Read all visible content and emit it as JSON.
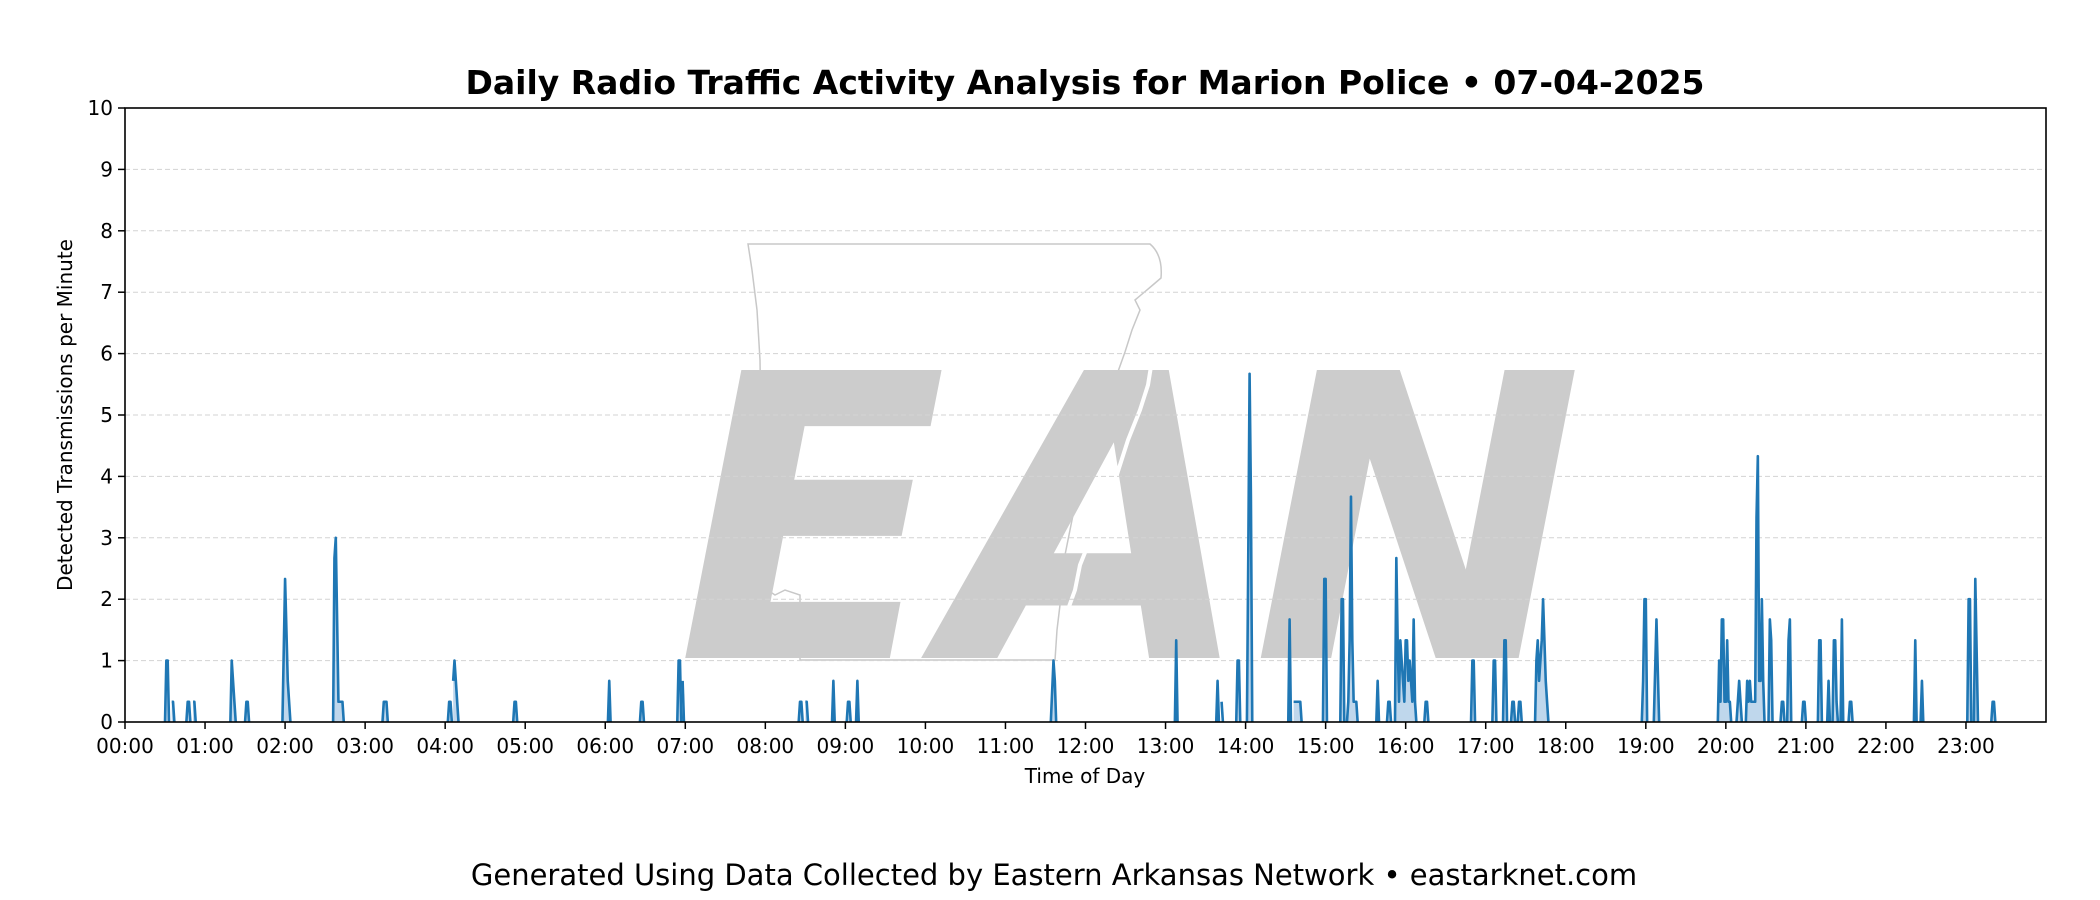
{
  "footer": "Generated Using Data Collected by Eastern Arkansas Network • eastarknet.com",
  "watermark": {
    "text": "EAN",
    "color": "#cccccc",
    "map_color": "#c8c8c8"
  },
  "colors": {
    "line": "#1f77b4",
    "fill": "#a9c9e6",
    "grid": "#d3d3d3",
    "axis": "#000000"
  },
  "chart_data": {
    "type": "area",
    "title": "Daily Radio Traffic Activity Analysis for Marion Police • 07-04-2025",
    "xlabel": "Time of Day",
    "ylabel": "Detected Transmissions per Minute",
    "xlim": [
      0,
      1440
    ],
    "ylim": [
      0,
      10
    ],
    "yticks": [
      0,
      1,
      2,
      3,
      4,
      5,
      6,
      7,
      8,
      9,
      10
    ],
    "xticks": [
      {
        "t": 0,
        "label": "00:00"
      },
      {
        "t": 60,
        "label": "01:00"
      },
      {
        "t": 120,
        "label": "02:00"
      },
      {
        "t": 180,
        "label": "03:00"
      },
      {
        "t": 240,
        "label": "04:00"
      },
      {
        "t": 300,
        "label": "05:00"
      },
      {
        "t": 360,
        "label": "06:00"
      },
      {
        "t": 420,
        "label": "07:00"
      },
      {
        "t": 480,
        "label": "08:00"
      },
      {
        "t": 540,
        "label": "09:00"
      },
      {
        "t": 600,
        "label": "10:00"
      },
      {
        "t": 660,
        "label": "11:00"
      },
      {
        "t": 720,
        "label": "12:00"
      },
      {
        "t": 780,
        "label": "13:00"
      },
      {
        "t": 840,
        "label": "14:00"
      },
      {
        "t": 900,
        "label": "15:00"
      },
      {
        "t": 960,
        "label": "16:00"
      },
      {
        "t": 1020,
        "label": "17:00"
      },
      {
        "t": 1080,
        "label": "18:00"
      },
      {
        "t": 1140,
        "label": "19:00"
      },
      {
        "t": 1200,
        "label": "20:00"
      },
      {
        "t": 1260,
        "label": "21:00"
      },
      {
        "t": 1320,
        "label": "22:00"
      },
      {
        "t": 1380,
        "label": "23:00"
      }
    ],
    "grid": "horizontal dashed",
    "x_units": "minutes after 00:00",
    "points": [
      [
        30,
        0
      ],
      [
        31,
        1
      ],
      [
        32,
        1
      ],
      [
        33,
        0
      ],
      [
        35,
        0.33
      ],
      [
        36,
        0.33
      ],
      [
        37,
        0
      ],
      [
        46,
        0
      ],
      [
        47,
        0.33
      ],
      [
        48,
        0.33
      ],
      [
        49,
        0
      ],
      [
        51,
        0.33
      ],
      [
        52,
        0.33
      ],
      [
        53,
        0
      ],
      [
        79,
        0
      ],
      [
        80,
        1
      ],
      [
        82,
        0.33
      ],
      [
        83,
        0
      ],
      [
        90,
        0
      ],
      [
        91,
        0.33
      ],
      [
        92,
        0.33
      ],
      [
        93,
        0
      ],
      [
        118,
        0
      ],
      [
        120,
        2.33
      ],
      [
        122,
        0.67
      ],
      [
        124,
        0
      ],
      [
        156,
        0
      ],
      [
        157,
        2.67
      ],
      [
        158,
        3
      ],
      [
        160,
        0.33
      ],
      [
        163,
        0.33
      ],
      [
        164,
        0
      ],
      [
        193,
        0
      ],
      [
        194,
        0.33
      ],
      [
        196,
        0.33
      ],
      [
        197,
        0
      ],
      [
        242,
        0
      ],
      [
        243,
        0.33
      ],
      [
        244,
        0.33
      ],
      [
        245,
        0
      ],
      [
        246,
        0.67
      ],
      [
        247,
        1
      ],
      [
        248,
        0.67
      ],
      [
        249,
        0.33
      ],
      [
        250,
        0
      ],
      [
        291,
        0
      ],
      [
        292,
        0.33
      ],
      [
        293,
        0.33
      ],
      [
        294,
        0
      ],
      [
        362,
        0
      ],
      [
        363,
        0.67
      ],
      [
        364,
        0
      ],
      [
        386,
        0
      ],
      [
        387,
        0.33
      ],
      [
        388,
        0.33
      ],
      [
        389,
        0
      ],
      [
        414,
        0
      ],
      [
        415,
        1
      ],
      [
        416,
        1
      ],
      [
        417,
        0
      ],
      [
        418,
        0.67
      ],
      [
        419,
        0
      ],
      [
        505,
        0
      ],
      [
        506,
        0.33
      ],
      [
        507,
        0.33
      ],
      [
        508,
        0
      ],
      [
        510,
        0.33
      ],
      [
        511,
        0.33
      ],
      [
        512,
        0
      ],
      [
        530,
        0
      ],
      [
        531,
        0.67
      ],
      [
        532,
        0
      ],
      [
        541,
        0
      ],
      [
        542,
        0.33
      ],
      [
        543,
        0.33
      ],
      [
        544,
        0
      ],
      [
        548,
        0
      ],
      [
        549,
        0.67
      ],
      [
        550,
        0
      ],
      [
        694,
        0
      ],
      [
        696,
        1
      ],
      [
        697,
        0.67
      ],
      [
        698,
        0
      ],
      [
        787,
        0
      ],
      [
        788,
        1.33
      ],
      [
        789,
        0
      ],
      [
        818,
        0
      ],
      [
        819,
        0.67
      ],
      [
        820,
        0
      ],
      [
        822,
        0.33
      ],
      [
        823,
        0
      ],
      [
        833,
        0
      ],
      [
        834,
        1
      ],
      [
        835,
        1
      ],
      [
        836,
        0
      ],
      [
        841,
        0
      ],
      [
        842,
        2.67
      ],
      [
        843,
        5.67
      ],
      [
        844,
        3.67
      ],
      [
        845,
        0
      ],
      [
        872,
        0
      ],
      [
        873,
        1.67
      ],
      [
        874,
        0
      ],
      [
        876,
        0.33
      ],
      [
        881,
        0.33
      ],
      [
        882,
        0
      ],
      [
        898,
        0
      ],
      [
        899,
        2.33
      ],
      [
        900,
        2.33
      ],
      [
        901,
        0
      ],
      [
        911,
        0
      ],
      [
        912,
        2
      ],
      [
        913,
        2
      ],
      [
        914,
        0
      ],
      [
        916,
        0
      ],
      [
        917,
        0.33
      ],
      [
        918,
        1.33
      ],
      [
        919,
        3.67
      ],
      [
        920,
        1.33
      ],
      [
        921,
        0.33
      ],
      [
        923,
        0.33
      ],
      [
        924,
        0
      ],
      [
        938,
        0
      ],
      [
        939,
        0.67
      ],
      [
        940,
        0
      ],
      [
        946,
        0
      ],
      [
        947,
        0.33
      ],
      [
        948,
        0.33
      ],
      [
        949,
        0
      ],
      [
        952,
        0
      ],
      [
        953,
        2.67
      ],
      [
        954,
        1.33
      ],
      [
        955,
        0.33
      ],
      [
        956,
        1.33
      ],
      [
        957,
        1
      ],
      [
        958,
        0.67
      ],
      [
        959,
        0.33
      ],
      [
        960,
        1.33
      ],
      [
        961,
        1.33
      ],
      [
        962,
        0.67
      ],
      [
        963,
        1
      ],
      [
        964,
        0.67
      ],
      [
        965,
        0.33
      ],
      [
        966,
        1.67
      ],
      [
        967,
        0.33
      ],
      [
        968,
        0
      ],
      [
        974,
        0
      ],
      [
        975,
        0.33
      ],
      [
        976,
        0.33
      ],
      [
        977,
        0
      ],
      [
        1009,
        0
      ],
      [
        1010,
        1
      ],
      [
        1011,
        1
      ],
      [
        1012,
        0
      ],
      [
        1025,
        0
      ],
      [
        1026,
        1
      ],
      [
        1027,
        1
      ],
      [
        1028,
        0
      ],
      [
        1033,
        0
      ],
      [
        1034,
        1.33
      ],
      [
        1035,
        1.33
      ],
      [
        1036,
        0
      ],
      [
        1039,
        0
      ],
      [
        1040,
        0.33
      ],
      [
        1041,
        0.33
      ],
      [
        1042,
        0
      ],
      [
        1044,
        0
      ],
      [
        1045,
        0.33
      ],
      [
        1046,
        0.33
      ],
      [
        1047,
        0
      ],
      [
        1057,
        0
      ],
      [
        1058,
        1
      ],
      [
        1059,
        1.33
      ],
      [
        1060,
        0.67
      ],
      [
        1062,
        1.33
      ],
      [
        1063,
        2
      ],
      [
        1065,
        0.67
      ],
      [
        1066,
        0.33
      ],
      [
        1067,
        0
      ],
      [
        1137,
        0
      ],
      [
        1138,
        0.67
      ],
      [
        1139,
        2
      ],
      [
        1140,
        2
      ],
      [
        1141,
        0
      ],
      [
        1146,
        0
      ],
      [
        1148,
        1.67
      ],
      [
        1150,
        0
      ],
      [
        1194,
        0
      ],
      [
        1195,
        1
      ],
      [
        1196,
        0.33
      ],
      [
        1197,
        1.67
      ],
      [
        1198,
        1.67
      ],
      [
        1199,
        0.33
      ],
      [
        1200,
        0.33
      ],
      [
        1201,
        1.33
      ],
      [
        1202,
        0.33
      ],
      [
        1203,
        0.33
      ],
      [
        1204,
        0
      ],
      [
        1208,
        0
      ],
      [
        1209,
        0.33
      ],
      [
        1210,
        0.67
      ],
      [
        1211,
        0.33
      ],
      [
        1212,
        0
      ],
      [
        1215,
        0
      ],
      [
        1216,
        0.67
      ],
      [
        1217,
        0.33
      ],
      [
        1218,
        0.67
      ],
      [
        1219,
        0.33
      ],
      [
        1220,
        0.33
      ],
      [
        1222,
        0.33
      ],
      [
        1223,
        3.33
      ],
      [
        1224,
        4.33
      ],
      [
        1225,
        0.67
      ],
      [
        1226,
        0.67
      ],
      [
        1227,
        2
      ],
      [
        1228,
        0.67
      ],
      [
        1229,
        0
      ],
      [
        1232,
        0
      ],
      [
        1233,
        1.67
      ],
      [
        1234,
        1.33
      ],
      [
        1235,
        0
      ],
      [
        1241,
        0
      ],
      [
        1242,
        0.33
      ],
      [
        1243,
        0.33
      ],
      [
        1244,
        0
      ],
      [
        1246,
        0
      ],
      [
        1247,
        1.33
      ],
      [
        1248,
        1.67
      ],
      [
        1249,
        0
      ],
      [
        1257,
        0
      ],
      [
        1258,
        0.33
      ],
      [
        1259,
        0.33
      ],
      [
        1260,
        0
      ],
      [
        1269,
        0
      ],
      [
        1270,
        1.33
      ],
      [
        1271,
        1.33
      ],
      [
        1272,
        0
      ],
      [
        1276,
        0
      ],
      [
        1277,
        0.67
      ],
      [
        1278,
        0
      ],
      [
        1280,
        0
      ],
      [
        1281,
        1.33
      ],
      [
        1282,
        1.33
      ],
      [
        1283,
        0.33
      ],
      [
        1284,
        0
      ],
      [
        1286,
        0
      ],
      [
        1287,
        1.67
      ],
      [
        1288,
        0
      ],
      [
        1292,
        0
      ],
      [
        1293,
        0.33
      ],
      [
        1294,
        0.33
      ],
      [
        1295,
        0
      ],
      [
        1341,
        0
      ],
      [
        1342,
        1.33
      ],
      [
        1343,
        0
      ],
      [
        1346,
        0
      ],
      [
        1347,
        0.67
      ],
      [
        1348,
        0
      ],
      [
        1381,
        0
      ],
      [
        1382,
        2
      ],
      [
        1383,
        2
      ],
      [
        1384,
        0
      ],
      [
        1386,
        0
      ],
      [
        1387,
        2.33
      ],
      [
        1389,
        0
      ],
      [
        1399,
        0
      ],
      [
        1400,
        0.33
      ],
      [
        1401,
        0.33
      ],
      [
        1402,
        0
      ]
    ]
  }
}
